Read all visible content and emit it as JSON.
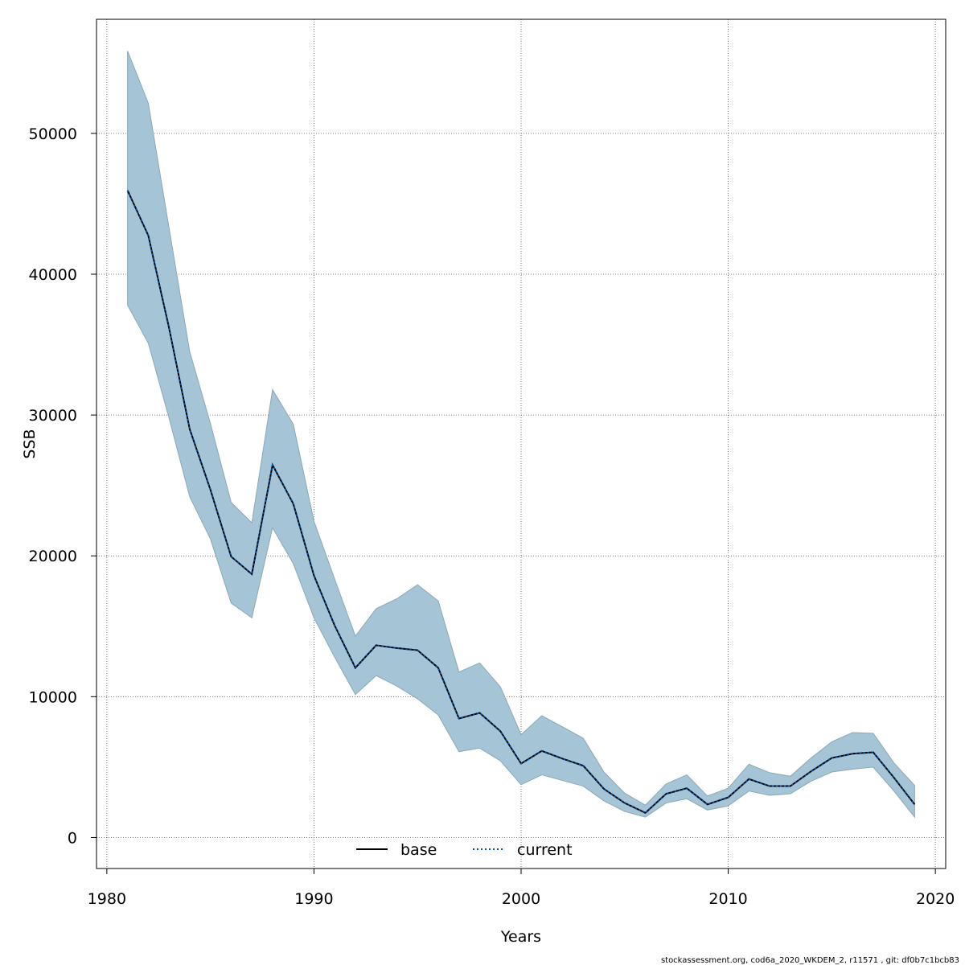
{
  "chart_data": {
    "type": "line",
    "xlabel": "Years",
    "ylabel": "SSB",
    "xlim": [
      1979.5,
      2020.5
    ],
    "ylim": [
      -2200,
      58100
    ],
    "x_ticks": [
      1980,
      1990,
      2000,
      2010,
      2020
    ],
    "y_ticks": [
      0,
      10000,
      20000,
      30000,
      40000,
      50000
    ],
    "x_tick_labels": [
      "1980",
      "1990",
      "2000",
      "2010",
      "2020"
    ],
    "y_tick_labels": [
      "0",
      "10000",
      "20000",
      "30000",
      "40000",
      "50000"
    ],
    "grid": true,
    "legend_position": "bottom-center",
    "x": [
      1981,
      1982,
      1983,
      1984,
      1985,
      1986,
      1987,
      1988,
      1989,
      1990,
      1991,
      1992,
      1993,
      1994,
      1995,
      1996,
      1997,
      1998,
      1999,
      2000,
      2001,
      2002,
      2003,
      2004,
      2005,
      2006,
      2007,
      2008,
      2009,
      2010,
      2011,
      2012,
      2013,
      2014,
      2015,
      2016,
      2017,
      2018,
      2019
    ],
    "series": [
      {
        "name": "base",
        "color": "#000000",
        "style": "solid",
        "values": [
          45950,
          42750,
          36200,
          29000,
          24700,
          19950,
          18700,
          26450,
          23700,
          18600,
          15050,
          12050,
          13650,
          13450,
          13300,
          12050,
          8450,
          8850,
          7550,
          5250,
          6150,
          5600,
          5100,
          3450,
          2450,
          1750,
          3100,
          3500,
          2350,
          2850,
          4150,
          3650,
          3650,
          4700,
          5650,
          5950,
          6050,
          4250,
          2350
        ]
      },
      {
        "name": "current",
        "color": "#0055aa",
        "style": "dotted",
        "values": [
          45950,
          42750,
          36200,
          29000,
          24700,
          19950,
          18700,
          26450,
          23700,
          18600,
          15050,
          12050,
          13650,
          13450,
          13300,
          12050,
          8450,
          8850,
          7550,
          5250,
          6150,
          5600,
          5100,
          3450,
          2450,
          1750,
          3100,
          3500,
          2350,
          2850,
          4150,
          3650,
          3650,
          4700,
          5650,
          5950,
          6050,
          4250,
          2350
        ]
      }
    ],
    "band": {
      "color": "#a5c4d5",
      "lower": [
        37800,
        35100,
        29800,
        24200,
        21200,
        16650,
        15600,
        22000,
        19450,
        15600,
        12800,
        10150,
        11500,
        10750,
        9850,
        8700,
        6100,
        6350,
        5450,
        3750,
        4450,
        4050,
        3650,
        2600,
        1850,
        1450,
        2450,
        2750,
        1950,
        2250,
        3300,
        3000,
        3100,
        4000,
        4650,
        4850,
        5000,
        3300,
        1450
      ],
      "upper": [
        55850,
        52150,
        43300,
        34500,
        29400,
        23800,
        22350,
        31800,
        29350,
        22450,
        18350,
        14300,
        16250,
        16950,
        17950,
        16800,
        11750,
        12400,
        10700,
        7300,
        8650,
        7850,
        7050,
        4650,
        3150,
        2300,
        3800,
        4450,
        2950,
        3500,
        5200,
        4600,
        4350,
        5650,
        6800,
        7450,
        7400,
        5300,
        3700
      ]
    },
    "footer": "stockassessment.org, cod6a_2020_WKDEM_2, r11571 , git: df0b7c1bcb83"
  }
}
